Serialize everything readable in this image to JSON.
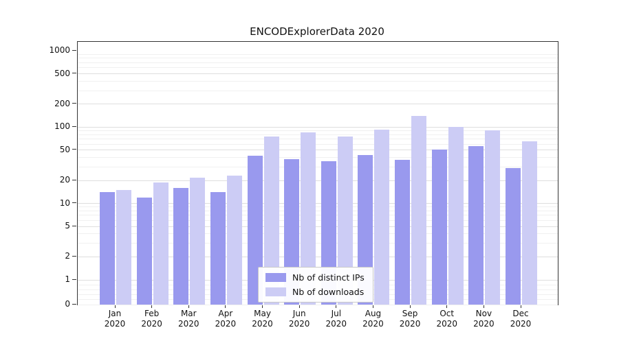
{
  "chart_data": {
    "type": "bar",
    "title": "ENCODExplorerData 2020",
    "categories": [
      "Jan 2020",
      "Feb 2020",
      "Mar 2020",
      "Apr 2020",
      "May 2020",
      "Jun 2020",
      "Jul 2020",
      "Aug 2020",
      "Sep 2020",
      "Oct 2020",
      "Nov 2020",
      "Dec 2020"
    ],
    "series": [
      {
        "name": "Nb of distinct IPs",
        "color": "#9999ee",
        "values": [
          14,
          12,
          16,
          14,
          42,
          38,
          36,
          43,
          37,
          51,
          56,
          29
        ]
      },
      {
        "name": "Nb of downloads",
        "color": "#ccccf5",
        "values": [
          15,
          19,
          22,
          23,
          75,
          85,
          75,
          92,
          140,
          100,
          90,
          65
        ]
      }
    ],
    "xlabel": "",
    "ylabel": "",
    "yscale": "symlog",
    "ylim": [
      0,
      1000
    ],
    "yticks": [
      0,
      1,
      2,
      5,
      10,
      20,
      50,
      100,
      200,
      500,
      1000
    ],
    "grid": "on",
    "legend_position": "inside lower center"
  },
  "colors": {
    "grid_major": "#dedede",
    "grid_minor": "#f0f0f0",
    "spine": "#333333",
    "background": "#ffffff"
  }
}
